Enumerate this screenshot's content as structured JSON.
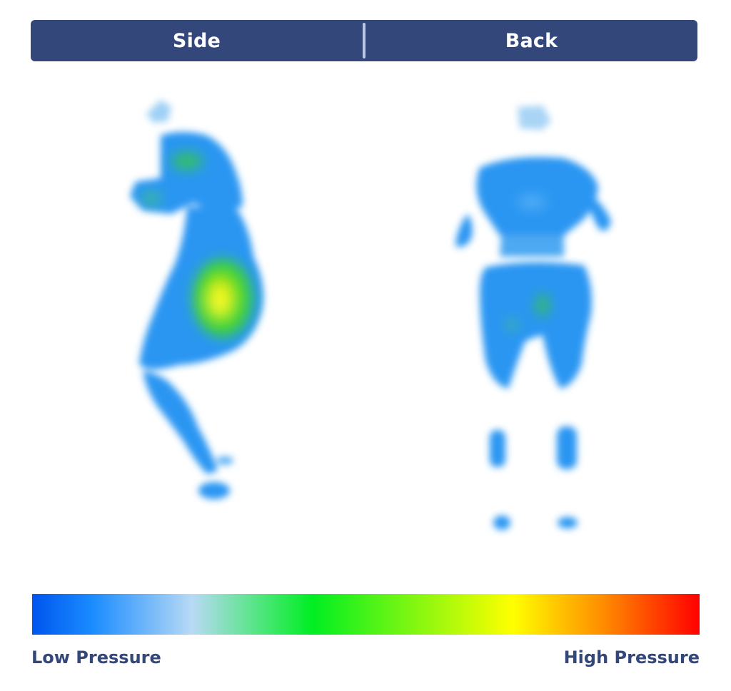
{
  "header": {
    "left_label": "Side",
    "right_label": "Back"
  },
  "figures": {
    "side": {
      "name": "side-pressure-map",
      "peak_level": "high"
    },
    "back": {
      "name": "back-pressure-map",
      "peak_level": "low"
    }
  },
  "scale": {
    "low_label": "Low Pressure",
    "high_label": "High Pressure",
    "colors": [
      "#0055ee",
      "#1a8cff",
      "#b8daf5",
      "#00ee22",
      "#ffff00",
      "#ff8800",
      "#ff0000"
    ]
  }
}
